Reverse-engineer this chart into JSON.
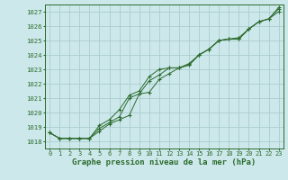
{
  "background_color": "#cce8eb",
  "grid_color": "#aacccc",
  "line_color": "#2d6b2d",
  "marker_color": "#2d6b2d",
  "title": "Graphe pression niveau de la mer (hPa)",
  "title_fontsize": 6.5,
  "ylim": [
    1017.5,
    1027.5
  ],
  "xlim": [
    -0.5,
    23.5
  ],
  "yticks": [
    1018,
    1019,
    1020,
    1021,
    1022,
    1023,
    1024,
    1025,
    1026,
    1027
  ],
  "xticks": [
    0,
    1,
    2,
    3,
    4,
    5,
    6,
    7,
    8,
    9,
    10,
    11,
    12,
    13,
    14,
    15,
    16,
    17,
    18,
    19,
    20,
    21,
    22,
    23
  ],
  "series": [
    [
      1018.6,
      1018.2,
      1018.2,
      1018.2,
      1018.2,
      1018.7,
      1019.2,
      1019.5,
      1019.8,
      1021.3,
      1022.2,
      1022.6,
      1023.1,
      1023.1,
      1023.3,
      1024.0,
      1024.4,
      1025.0,
      1025.1,
      1025.1,
      1025.8,
      1026.3,
      1026.5,
      1027.0
    ],
    [
      1018.6,
      1018.2,
      1018.2,
      1018.2,
      1018.2,
      1018.9,
      1019.3,
      1019.7,
      1021.0,
      1021.3,
      1021.4,
      1022.3,
      1022.7,
      1023.1,
      1023.3,
      1024.0,
      1024.4,
      1025.0,
      1025.1,
      1025.1,
      1025.8,
      1026.3,
      1026.5,
      1027.2
    ],
    [
      1018.6,
      1018.2,
      1018.2,
      1018.2,
      1018.2,
      1019.1,
      1019.5,
      1020.2,
      1021.2,
      1021.5,
      1022.5,
      1023.0,
      1023.1,
      1023.1,
      1023.4,
      1024.0,
      1024.4,
      1025.0,
      1025.1,
      1025.2,
      1025.8,
      1026.3,
      1026.5,
      1027.3
    ]
  ]
}
